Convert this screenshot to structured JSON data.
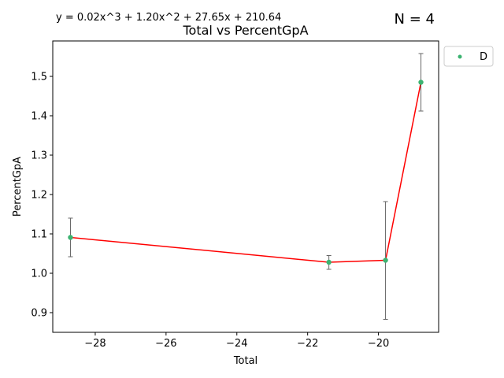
{
  "chart_data": {
    "type": "scatter",
    "title": "Total vs PercentGpA",
    "equation": "y = 0.02x^3 + 1.20x^2 + 27.65x + 210.64",
    "n_label": "N = 4",
    "xlabel": "Total",
    "ylabel": "PercentGpA",
    "xlim": [
      -29.2,
      -18.3
    ],
    "ylim": [
      0.85,
      1.59
    ],
    "x_ticks": [
      -28,
      -26,
      -24,
      -22,
      -20
    ],
    "x_tick_labels": [
      "−28",
      "−26",
      "−24",
      "−22",
      "−20"
    ],
    "y_ticks": [
      0.9,
      1.0,
      1.1,
      1.2,
      1.3,
      1.4,
      1.5
    ],
    "y_tick_labels": [
      "0.9",
      "1.0",
      "1.1",
      "1.2",
      "1.3",
      "1.4",
      "1.5"
    ],
    "grid": false,
    "legend_position": "outside-top-right",
    "series": [
      {
        "name": "D",
        "color": "#3cb371",
        "points": [
          {
            "x": -28.7,
            "y": 1.091,
            "err_low": 1.042,
            "err_high": 1.14
          },
          {
            "x": -21.4,
            "y": 1.028,
            "err_low": 1.01,
            "err_high": 1.045
          },
          {
            "x": -19.8,
            "y": 1.033,
            "err_low": 0.883,
            "err_high": 1.182
          },
          {
            "x": -18.8,
            "y": 1.485,
            "err_low": 1.412,
            "err_high": 1.558
          }
        ]
      }
    ],
    "fit_line": {
      "color": "#ff0000"
    },
    "errorbar_color": "#666666"
  }
}
